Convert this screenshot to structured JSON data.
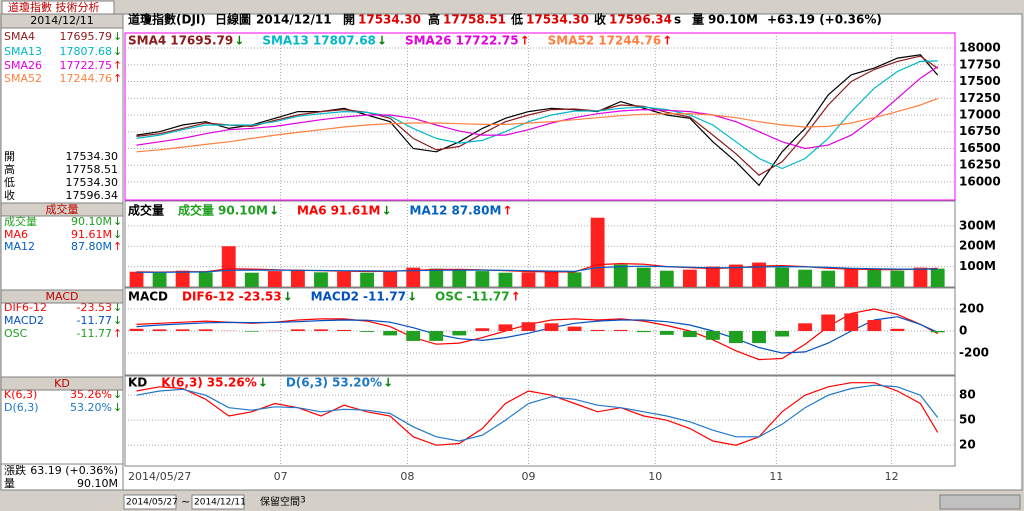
{
  "app": {
    "tab": "道瓊指數 技術分析",
    "date": "2014/12/11"
  },
  "header": {
    "symbol": "道瓊指數(DJI)",
    "period": "日線圖",
    "date": "2014/12/11",
    "open_label": "開",
    "open": "17534.30",
    "high_label": "高",
    "high": "17758.51",
    "low_label": "低",
    "low": "17534.30",
    "close_label": "收",
    "close": "17596.34",
    "close_flag": "s",
    "volume_label": "量",
    "volume": "90.10M",
    "change": "+63.19 (+0.36%)"
  },
  "summary": {
    "change_label": "漲跌",
    "change": "63.19 (+0.36%)",
    "volume_label": "量",
    "volume": "90.10M"
  },
  "toolbar": {
    "from": "2014/05/27",
    "sep": "~",
    "to": "2014/12/11",
    "reserve": "保留空間",
    "reserve_value": "3"
  },
  "chart_data": [
    {
      "type": "line",
      "x": [
        0,
        4,
        8,
        12,
        16,
        20,
        24,
        28,
        32,
        36,
        40,
        44,
        48,
        52,
        56,
        60,
        64,
        68,
        72,
        76,
        80,
        84,
        88,
        92,
        96,
        100,
        104,
        108,
        112,
        116,
        120,
        124,
        128,
        132,
        136,
        139
      ],
      "xlim": [
        -2,
        142
      ],
      "values": [
        16700,
        16750,
        16850,
        16900,
        16800,
        16850,
        16950,
        17050,
        17050,
        17100,
        17000,
        16900,
        16500,
        16450,
        16600,
        16800,
        16950,
        17050,
        17100,
        17080,
        17050,
        17200,
        17100,
        17000,
        16950,
        16600,
        16300,
        15950,
        16450,
        16800,
        17300,
        17600,
        17700,
        17850,
        17900,
        17596.34
      ],
      "color": "#000000",
      "ylim": [
        15730,
        18225
      ],
      "yticks": [
        16000,
        16250,
        16500,
        16750,
        17000,
        17250,
        17500,
        17750,
        18000
      ],
      "grid": true,
      "series": [
        {
          "name": "SMA4",
          "color": "#8b1a1a",
          "kind": "line",
          "legend_value": "17695.79",
          "arrow": "↓",
          "values": [
            16680,
            16720,
            16800,
            16880,
            16850,
            16830,
            16920,
            17000,
            17050,
            17080,
            17040,
            16950,
            16650,
            16480,
            16530,
            16720,
            16900,
            17000,
            17080,
            17090,
            17060,
            17150,
            17130,
            17040,
            16970,
            16700,
            16420,
            16100,
            16300,
            16700,
            17150,
            17500,
            17680,
            17800,
            17880,
            17695.79
          ]
        },
        {
          "name": "SMA13",
          "color": "#00b8c8",
          "kind": "line",
          "legend_value": "17807.68",
          "arrow": "↓",
          "values": [
            16650,
            16700,
            16780,
            16850,
            16850,
            16850,
            16900,
            16980,
            17020,
            17050,
            17040,
            16980,
            16800,
            16650,
            16580,
            16620,
            16750,
            16900,
            17000,
            17060,
            17060,
            17100,
            17120,
            17080,
            17000,
            16850,
            16600,
            16350,
            16200,
            16350,
            16650,
            17050,
            17400,
            17650,
            17800,
            17807.68
          ]
        },
        {
          "name": "SMA26",
          "color": "#e000e0",
          "kind": "line",
          "legend_value": "17722.75",
          "arrow": "↑",
          "values": [
            16550,
            16600,
            16650,
            16720,
            16780,
            16800,
            16830,
            16880,
            16930,
            16970,
            17000,
            17000,
            16950,
            16850,
            16760,
            16700,
            16700,
            16780,
            16880,
            16960,
            17020,
            17060,
            17080,
            17070,
            17050,
            17000,
            16900,
            16750,
            16600,
            16500,
            16550,
            16700,
            16950,
            17250,
            17550,
            17722.75
          ]
        },
        {
          "name": "SMA52",
          "color": "#ff8040",
          "kind": "line",
          "legend_value": "17244.76",
          "arrow": "↑",
          "values": [
            16450,
            16480,
            16520,
            16560,
            16600,
            16650,
            16700,
            16740,
            16780,
            16820,
            16850,
            16870,
            16880,
            16880,
            16870,
            16860,
            16860,
            16880,
            16900,
            16930,
            16960,
            16990,
            17010,
            17020,
            17020,
            17000,
            16960,
            16900,
            16850,
            16820,
            16830,
            16880,
            16960,
            17050,
            17150,
            17244.76
          ]
        }
      ]
    },
    {
      "type": "bar",
      "title": "成交量",
      "x": [
        0,
        4,
        8,
        12,
        16,
        20,
        24,
        28,
        32,
        36,
        40,
        44,
        48,
        52,
        56,
        60,
        64,
        68,
        72,
        76,
        80,
        84,
        88,
        92,
        96,
        100,
        104,
        108,
        112,
        116,
        120,
        124,
        128,
        132,
        136,
        139
      ],
      "xlim": [
        -2,
        142
      ],
      "ylim": [
        0,
        422
      ],
      "yticks": [
        {
          "value": 100,
          "label": "100M"
        },
        {
          "value": 200,
          "label": "200M"
        },
        {
          "value": 300,
          "label": "300M"
        }
      ],
      "grid": true,
      "series": [
        {
          "name": "成交量",
          "kind": "bar",
          "color_by": "change",
          "up_color": "#ff2020",
          "down_color": "#20a020",
          "legend_value": "90.10M",
          "arrow": "↓",
          "values": [
            75,
            70,
            80,
            72,
            200,
            70,
            78,
            85,
            72,
            75,
            70,
            80,
            95,
            90,
            85,
            78,
            70,
            72,
            75,
            72,
            340,
            110,
            95,
            80,
            85,
            100,
            110,
            120,
            95,
            85,
            80,
            90,
            85,
            80,
            95,
            90.1
          ]
        },
        {
          "name": "MA6",
          "color": "#ff0000",
          "kind": "line",
          "legend_value": "91.61M",
          "arrow": "↓",
          "values": [
            74,
            73,
            75,
            75,
            90,
            88,
            85,
            82,
            80,
            78,
            76,
            77,
            82,
            86,
            87,
            84,
            80,
            76,
            74,
            74,
            110,
            115,
            112,
            100,
            95,
            90,
            95,
            102,
            105,
            100,
            92,
            88,
            86,
            85,
            88,
            91.61
          ]
        },
        {
          "name": "MA12",
          "color": "#0060c0",
          "kind": "line",
          "legend_value": "87.80M",
          "arrow": "↑",
          "values": [
            72,
            72,
            73,
            74,
            82,
            83,
            83,
            82,
            81,
            80,
            79,
            78,
            80,
            82,
            83,
            83,
            82,
            80,
            78,
            77,
            95,
            100,
            102,
            100,
            97,
            94,
            95,
            98,
            100,
            99,
            96,
            92,
            90,
            88,
            88,
            87.8
          ]
        }
      ]
    },
    {
      "type": "bar",
      "title": "MACD",
      "x": [
        0,
        4,
        8,
        12,
        16,
        20,
        24,
        28,
        32,
        36,
        40,
        44,
        48,
        52,
        56,
        60,
        64,
        68,
        72,
        76,
        80,
        84,
        88,
        92,
        96,
        100,
        104,
        108,
        112,
        116,
        120,
        124,
        128,
        132,
        136,
        139
      ],
      "xlim": [
        -2,
        142
      ],
      "ylim": [
        -400,
        391
      ],
      "yticks": [
        -200,
        0,
        200
      ],
      "grid": true,
      "series": [
        {
          "name": "DIF6-12",
          "color": "#ff0000",
          "kind": "line",
          "legend_value": "-23.53",
          "arrow": "↓",
          "values": [
            60,
            70,
            80,
            90,
            80,
            70,
            80,
            100,
            110,
            110,
            90,
            40,
            -60,
            -120,
            -110,
            -60,
            0,
            60,
            100,
            110,
            100,
            110,
            90,
            50,
            0,
            -80,
            -180,
            -260,
            -250,
            -120,
            40,
            160,
            200,
            150,
            60,
            -23.53
          ]
        },
        {
          "name": "MACD2",
          "color": "#0050c0",
          "kind": "line",
          "legend_value": "-11.77",
          "arrow": "↓",
          "values": [
            40,
            55,
            65,
            75,
            78,
            76,
            78,
            85,
            95,
            100,
            98,
            80,
            30,
            -30,
            -70,
            -85,
            -60,
            -20,
            30,
            70,
            90,
            100,
            100,
            85,
            55,
            0,
            -70,
            -150,
            -200,
            -190,
            -110,
            0,
            100,
            130,
            60,
            -11.77
          ]
        },
        {
          "name": "OSC",
          "kind": "bar",
          "color_by": "sign",
          "up_color": "#ff2020",
          "down_color": "#20a020",
          "legend_value": "-11.77",
          "arrow": "↑",
          "values": [
            20,
            15,
            15,
            15,
            2,
            -6,
            2,
            15,
            15,
            10,
            -8,
            -40,
            -90,
            -90,
            -40,
            25,
            60,
            80,
            70,
            40,
            10,
            10,
            -10,
            -35,
            -55,
            -80,
            -110,
            -110,
            -50,
            70,
            150,
            160,
            100,
            20,
            0,
            -11.77
          ]
        }
      ]
    },
    {
      "type": "line",
      "title": "KD",
      "x": [
        0,
        4,
        8,
        12,
        16,
        20,
        24,
        28,
        32,
        36,
        40,
        44,
        48,
        52,
        56,
        60,
        64,
        68,
        72,
        76,
        80,
        84,
        88,
        92,
        96,
        100,
        104,
        108,
        112,
        116,
        120,
        124,
        128,
        132,
        136,
        139
      ],
      "xlim": [
        -2,
        142
      ],
      "ylim": [
        -5,
        103
      ],
      "yticks": [
        20,
        50,
        80
      ],
      "grid": true,
      "xticks": [
        {
          "value": 0,
          "label": "2014/05/27"
        },
        {
          "value": 25,
          "label": "07"
        },
        {
          "value": 47,
          "label": "08"
        },
        {
          "value": 68,
          "label": "09"
        },
        {
          "value": 90,
          "label": "10"
        },
        {
          "value": 111,
          "label": "11"
        },
        {
          "value": 131,
          "label": "12"
        }
      ],
      "series": [
        {
          "name": "K(6,3)",
          "color": "#ff0000",
          "kind": "line",
          "legend_value": "35.26%",
          "arrow": "↓",
          "values": [
            85,
            90,
            88,
            75,
            55,
            60,
            70,
            65,
            55,
            68,
            60,
            55,
            30,
            20,
            22,
            40,
            70,
            85,
            80,
            70,
            60,
            65,
            55,
            50,
            40,
            25,
            20,
            30,
            60,
            80,
            90,
            95,
            95,
            85,
            70,
            35.26
          ]
        },
        {
          "name": "D(6,3)",
          "color": "#1e78c8",
          "kind": "line",
          "legend_value": "53.20%",
          "arrow": "↓",
          "values": [
            80,
            85,
            87,
            80,
            65,
            62,
            66,
            65,
            60,
            63,
            62,
            58,
            42,
            30,
            25,
            32,
            50,
            70,
            78,
            75,
            68,
            65,
            60,
            55,
            48,
            38,
            30,
            30,
            45,
            65,
            80,
            88,
            92,
            90,
            80,
            53.2
          ]
        }
      ]
    }
  ]
}
